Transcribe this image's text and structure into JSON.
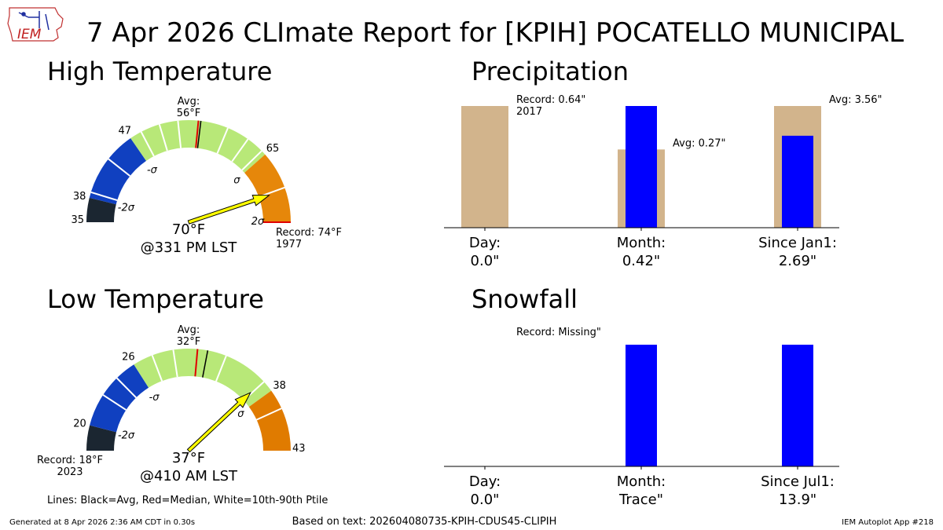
{
  "page_title": "7 Apr 2026 CLImate Report for [KPIH] POCATELLO MUNICIPAL",
  "logo": {
    "text": "IEM",
    "icon": "iem-iowa-logo"
  },
  "colors": {
    "cold2": "#1b2631",
    "cold1": "#1040c0",
    "normal": "#b8e878",
    "warm1": "#e6870a",
    "warm2": "#e07b00",
    "median": "#e00000",
    "avg": "#000000",
    "pointer": "#ffff00",
    "bar_obs": "#0000ff",
    "bar_avg": "#d2b48c"
  },
  "footer": {
    "generated": "Generated at 8 Apr 2026 2:36 AM CDT in 0.30s",
    "based_on": "Based on text: 202604080735-KPIH-CDUS45-CLIPIH",
    "app": "IEM Autoplot App #218"
  },
  "legend_note": "Lines: Black=Avg, Red=Median, White=10th-90th Ptile",
  "chart_data": [
    {
      "type": "gauge",
      "title": "High Temperature",
      "min": 35,
      "max": 74,
      "bands": [
        {
          "from": 35,
          "to": 38,
          "color": "cold2"
        },
        {
          "from": 38,
          "to": 47,
          "color": "cold1"
        },
        {
          "from": 47,
          "to": 65,
          "color": "normal"
        },
        {
          "from": 65,
          "to": 74,
          "color": "warm1"
        }
      ],
      "percentile_lines": [
        38.7,
        43.3,
        48.5,
        50.9,
        53.2,
        59.4,
        62.2,
        64.4,
        69.7
      ],
      "avg": 56,
      "median": 55.7,
      "observed": 70,
      "labels": {
        "avg": [
          "Avg:",
          "56°F"
        ],
        "minus2": "38",
        "minus1": "47",
        "plus1": "65",
        "min": "35",
        "sigma_minus2": "-2σ",
        "sigma_minus1": "-σ",
        "sigma_plus1": "σ",
        "sigma_plus2": "2σ",
        "record": [
          "Record: 74°F",
          "1977"
        ],
        "observed": "70°F",
        "time": "@331 PM LST"
      }
    },
    {
      "type": "gauge",
      "title": "Low Temperature",
      "min": 18,
      "max": 43,
      "bands": [
        {
          "from": 18,
          "to": 20,
          "color": "cold2"
        },
        {
          "from": 20,
          "to": 26,
          "color": "cold1"
        },
        {
          "from": 26,
          "to": 38,
          "color": "normal"
        },
        {
          "from": 38,
          "to": 43,
          "color": "warm2"
        }
      ],
      "percentile_lines": [
        22.6,
        24.3,
        27.6,
        29.3,
        33.5,
        37.1,
        39.6
      ],
      "avg": 32,
      "median": 31.2,
      "observed": 37,
      "labels": {
        "avg": [
          "Avg:",
          "32°F"
        ],
        "minus2": "20",
        "minus1": "26",
        "plus1": "38",
        "max": "43",
        "sigma_minus2": "-2σ",
        "sigma_minus1": "-σ",
        "sigma_plus1": "σ",
        "record": [
          "Record: 18°F",
          "2023"
        ],
        "observed": "37°F",
        "time": "@410 AM LST"
      }
    },
    {
      "type": "bar",
      "title": "Precipitation",
      "categories": [
        "Day:",
        "Month:",
        "Since Jan1:"
      ],
      "tick_values": [
        "0.0\"",
        "0.42\"",
        "2.69\""
      ],
      "relative_to_avg": [
        0,
        1,
        1
      ],
      "observed": [
        0.0,
        0.42,
        2.69
      ],
      "average": [
        0.64,
        0.27,
        3.56
      ],
      "annotations": [
        [
          "Record: 0.64\"",
          "2017"
        ],
        [
          "Avg: 0.27\""
        ],
        [
          "Avg: 3.56\""
        ]
      ]
    },
    {
      "type": "bar",
      "title": "Snowfall",
      "categories": [
        "Day:",
        "Month:",
        "Since Jul1:"
      ],
      "tick_values": [
        "0.0\"",
        "Trace\"",
        "13.9\""
      ],
      "relative_to_avg": [
        0,
        1,
        1
      ],
      "observed": [
        0.0,
        0.0001,
        13.9
      ],
      "average": [
        0,
        0,
        0
      ],
      "annotations": [
        [
          "Record: Missing\""
        ],
        [],
        []
      ]
    }
  ]
}
